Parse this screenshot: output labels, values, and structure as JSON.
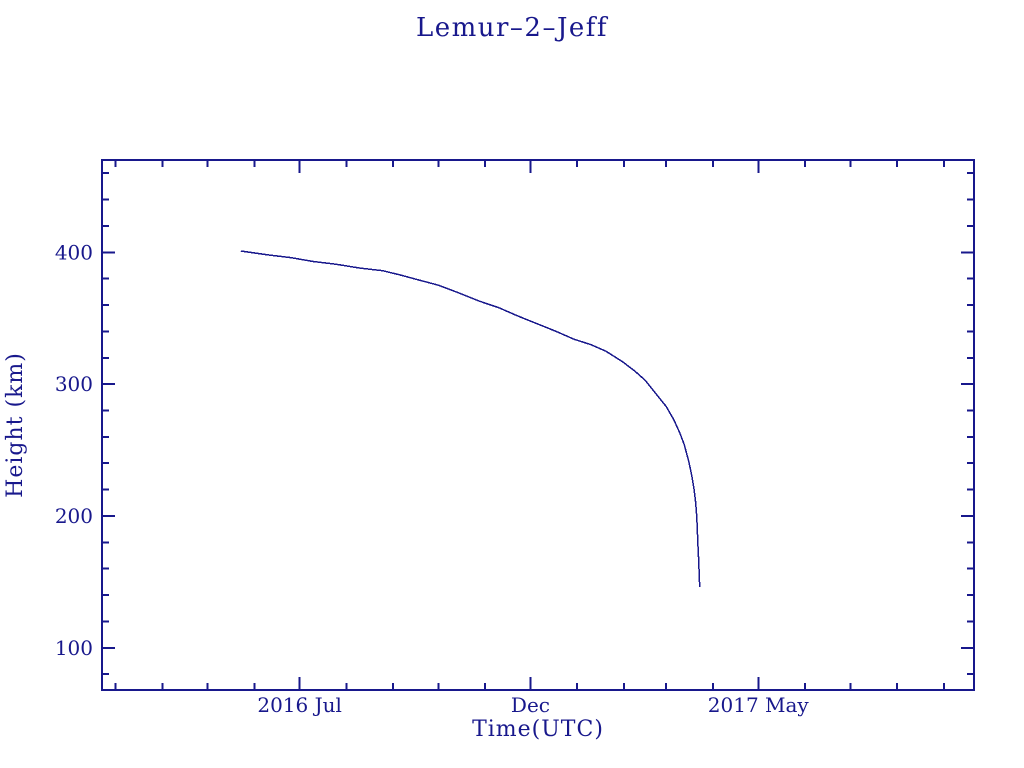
{
  "page": {
    "background": "#ffffff",
    "accent_color": "#18188c"
  },
  "chart_data": {
    "type": "line",
    "title": "Lemur–2–Jeff",
    "xlabel": "Time(UTC)",
    "ylabel": "Height (km)",
    "line_color": "#18188c",
    "text_color": "#18188c",
    "background": "#ffffff",
    "grid": false,
    "legend": null,
    "x_axis": {
      "type": "time",
      "range": [
        "2016-02-21",
        "2017-09-21"
      ],
      "major_ticks": [
        {
          "date": "2016-07-01",
          "label": "2016 Jul"
        },
        {
          "date": "2016-12-01",
          "label": "Dec"
        },
        {
          "date": "2017-05-01",
          "label": "2017 May"
        }
      ],
      "minor_tick_interval_months": 1
    },
    "y_axis": {
      "range": [
        68,
        470
      ],
      "major_ticks": [
        {
          "value": 100,
          "label": "100"
        },
        {
          "value": 200,
          "label": "200"
        },
        {
          "value": 300,
          "label": "300"
        },
        {
          "value": 400,
          "label": "400"
        }
      ],
      "minor_tick_step": 20
    },
    "series": [
      {
        "name": "orbital-height",
        "points": [
          [
            "2016-05-23",
            401
          ],
          [
            "2016-06-10",
            398
          ],
          [
            "2016-06-25",
            396
          ],
          [
            "2016-07-10",
            393
          ],
          [
            "2016-07-25",
            391
          ],
          [
            "2016-08-10",
            388
          ],
          [
            "2016-08-25",
            386
          ],
          [
            "2016-09-05",
            383
          ],
          [
            "2016-09-18",
            379
          ],
          [
            "2016-10-01",
            375
          ],
          [
            "2016-10-15",
            369
          ],
          [
            "2016-10-28",
            363
          ],
          [
            "2016-11-10",
            358
          ],
          [
            "2016-11-22",
            352
          ],
          [
            "2016-12-05",
            346
          ],
          [
            "2016-12-18",
            340
          ],
          [
            "2016-12-30",
            334
          ],
          [
            "2017-01-10",
            330
          ],
          [
            "2017-01-20",
            325
          ],
          [
            "2017-01-31",
            317
          ],
          [
            "2017-02-08",
            310
          ],
          [
            "2017-02-15",
            303
          ],
          [
            "2017-02-22",
            293
          ],
          [
            "2017-03-01",
            283
          ],
          [
            "2017-03-06",
            273
          ],
          [
            "2017-03-10",
            263
          ],
          [
            "2017-03-13",
            254
          ],
          [
            "2017-03-16",
            241
          ],
          [
            "2017-03-18",
            230
          ],
          [
            "2017-03-19T12:00",
            220
          ],
          [
            "2017-03-20T12:00",
            210
          ],
          [
            "2017-03-21T06:00",
            199
          ],
          [
            "2017-03-21T16:00",
            188
          ],
          [
            "2017-03-22T02:00",
            177
          ],
          [
            "2017-03-22T12:00",
            166
          ],
          [
            "2017-03-22T20:00",
            156
          ],
          [
            "2017-03-23T04:00",
            146
          ]
        ]
      }
    ]
  }
}
